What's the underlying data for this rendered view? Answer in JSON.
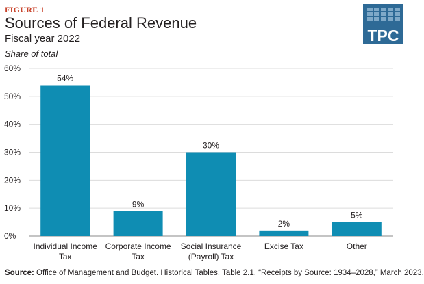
{
  "header": {
    "figure_label": "FIGURE 1",
    "title": "Sources of Federal Revenue",
    "subtitle": "Fiscal year 2022",
    "y_unit": "Share of total"
  },
  "logo": {
    "text": "TPC",
    "icon": "tpc-logo-icon",
    "color": "#2e6a96",
    "tile_color": "#7fa9c8"
  },
  "chart_data": {
    "type": "bar",
    "title": "",
    "categories": [
      [
        "Individual Income",
        "Tax"
      ],
      [
        "Corporate Income",
        "Tax"
      ],
      [
        "Social Insurance",
        "(Payroll) Tax"
      ],
      [
        "Excise Tax"
      ],
      [
        "Other"
      ]
    ],
    "values": [
      54,
      9,
      30,
      2,
      5
    ],
    "value_labels": [
      "54%",
      "9%",
      "30%",
      "2%",
      "5%"
    ],
    "ylim": [
      0,
      60
    ],
    "yticks": [
      0,
      10,
      20,
      30,
      40,
      50,
      60
    ],
    "ytick_labels": [
      "0%",
      "10%",
      "20%",
      "30%",
      "40%",
      "50%",
      "60%"
    ],
    "ylabel": "Share of total",
    "grid": true,
    "bar_color": "#0f8db3"
  },
  "footer": {
    "source_label": "Source:",
    "source_text": " Office of Management and Budget. Historical Tables. Table 2.1, “Receipts by Source: 1934–2028,” March 2023."
  }
}
